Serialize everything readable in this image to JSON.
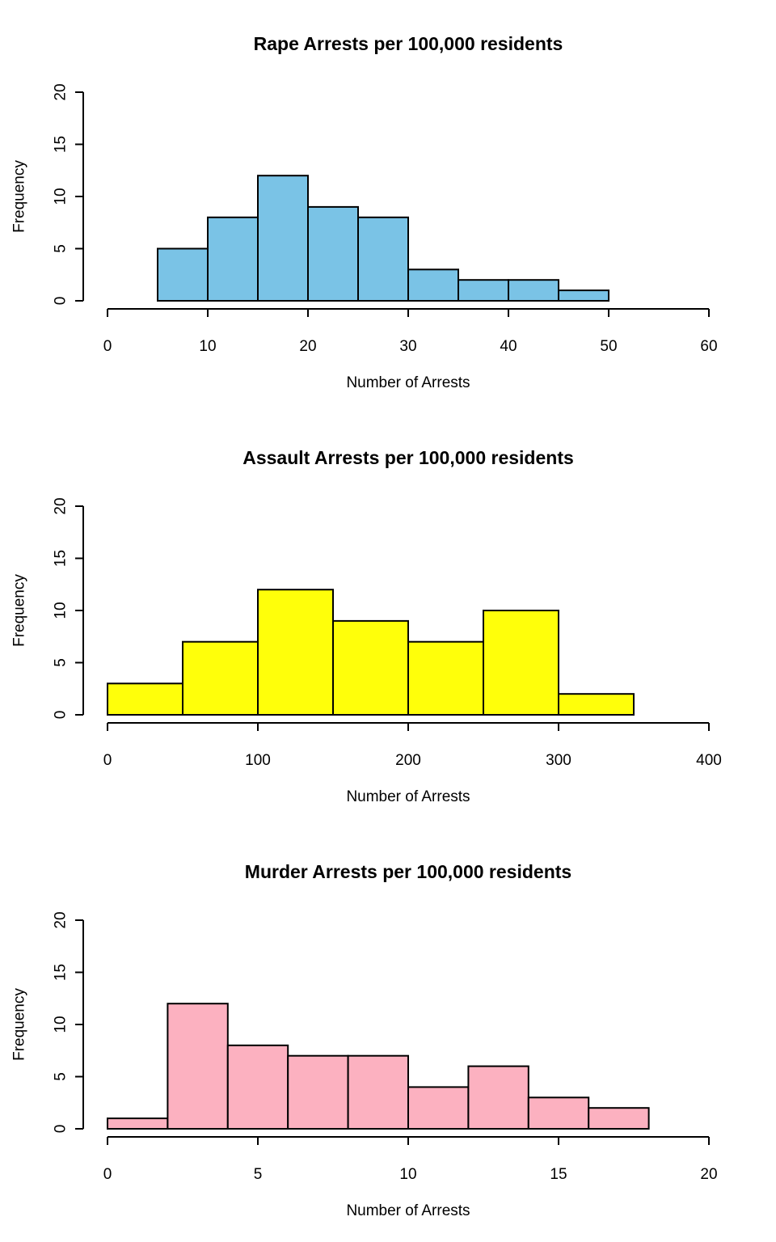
{
  "chart_data": [
    {
      "type": "bar",
      "title": "Rape Arrests per 100,000 residents",
      "xlabel": "Number of Arrests",
      "ylabel": "Frequency",
      "color": "#7AC3E6",
      "xlim": [
        0,
        60
      ],
      "ylim": [
        0,
        20
      ],
      "xticks": [
        0,
        10,
        20,
        30,
        40,
        50,
        60
      ],
      "yticks": [
        0,
        5,
        10,
        15,
        20
      ],
      "bins": [
        {
          "x0": 5,
          "x1": 10,
          "count": 5
        },
        {
          "x0": 10,
          "x1": 15,
          "count": 8
        },
        {
          "x0": 15,
          "x1": 20,
          "count": 12
        },
        {
          "x0": 20,
          "x1": 25,
          "count": 9
        },
        {
          "x0": 25,
          "x1": 30,
          "count": 8
        },
        {
          "x0": 30,
          "x1": 35,
          "count": 3
        },
        {
          "x0": 35,
          "x1": 40,
          "count": 2
        },
        {
          "x0": 40,
          "x1": 45,
          "count": 2
        },
        {
          "x0": 45,
          "x1": 50,
          "count": 1
        }
      ]
    },
    {
      "type": "bar",
      "title": "Assault Arrests per 100,000 residents",
      "xlabel": "Number of Arrests",
      "ylabel": "Frequency",
      "color": "#FFFF0A",
      "xlim": [
        0,
        400
      ],
      "ylim": [
        0,
        20
      ],
      "xticks": [
        0,
        100,
        200,
        300,
        400
      ],
      "yticks": [
        0,
        5,
        10,
        15,
        20
      ],
      "bins": [
        {
          "x0": 0,
          "x1": 50,
          "count": 3
        },
        {
          "x0": 50,
          "x1": 100,
          "count": 7
        },
        {
          "x0": 100,
          "x1": 150,
          "count": 12
        },
        {
          "x0": 150,
          "x1": 200,
          "count": 9
        },
        {
          "x0": 200,
          "x1": 250,
          "count": 7
        },
        {
          "x0": 250,
          "x1": 300,
          "count": 10
        },
        {
          "x0": 300,
          "x1": 350,
          "count": 2
        }
      ]
    },
    {
      "type": "bar",
      "title": "Murder Arrests per 100,000 residents",
      "xlabel": "Number of Arrests",
      "ylabel": "Frequency",
      "color": "#FCB1C0",
      "xlim": [
        0,
        20
      ],
      "ylim": [
        0,
        20
      ],
      "xticks": [
        0,
        5,
        10,
        15,
        20
      ],
      "yticks": [
        0,
        5,
        10,
        15,
        20
      ],
      "bins": [
        {
          "x0": 0,
          "x1": 2,
          "count": 1
        },
        {
          "x0": 2,
          "x1": 4,
          "count": 12
        },
        {
          "x0": 4,
          "x1": 6,
          "count": 8
        },
        {
          "x0": 6,
          "x1": 8,
          "count": 7
        },
        {
          "x0": 8,
          "x1": 10,
          "count": 7
        },
        {
          "x0": 10,
          "x1": 12,
          "count": 4
        },
        {
          "x0": 12,
          "x1": 14,
          "count": 6
        },
        {
          "x0": 14,
          "x1": 16,
          "count": 3
        },
        {
          "x0": 16,
          "x1": 18,
          "count": 2
        }
      ]
    }
  ]
}
